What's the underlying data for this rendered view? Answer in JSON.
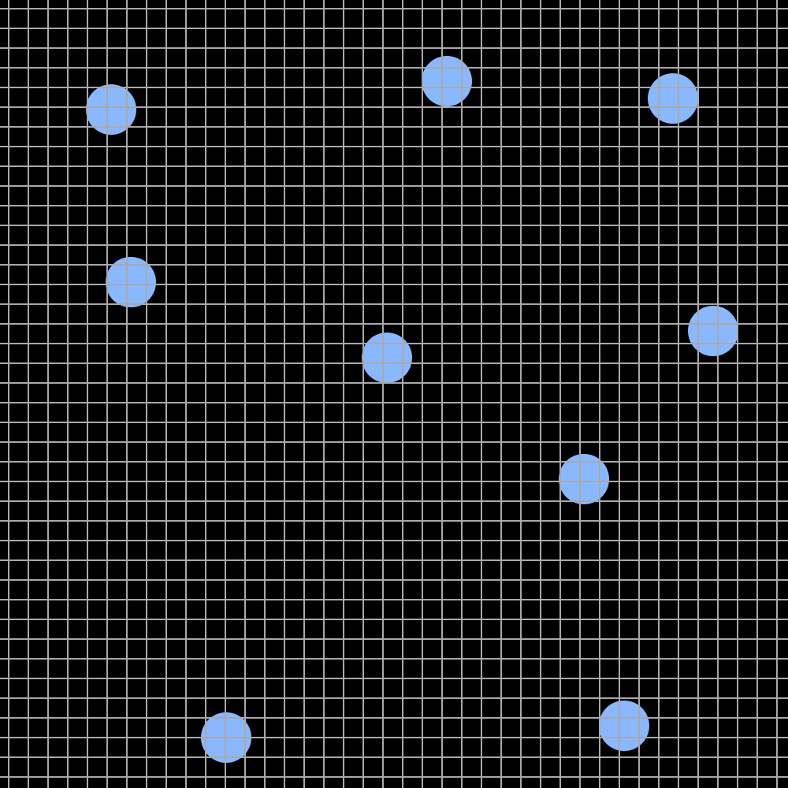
{
  "board": {
    "background_color": "#000000",
    "grid_color": "#a9a9a9",
    "circle_color": "#8ab8ff",
    "grid_lines_on_top_of_circles": true
  },
  "circles": [
    {
      "id": "circle-1"
    },
    {
      "id": "circle-2"
    },
    {
      "id": "circle-3"
    },
    {
      "id": "circle-4"
    },
    {
      "id": "circle-5"
    },
    {
      "id": "circle-6"
    },
    {
      "id": "circle-7"
    },
    {
      "id": "circle-8"
    },
    {
      "id": "circle-9"
    },
    {
      "id": "circle-10"
    }
  ]
}
